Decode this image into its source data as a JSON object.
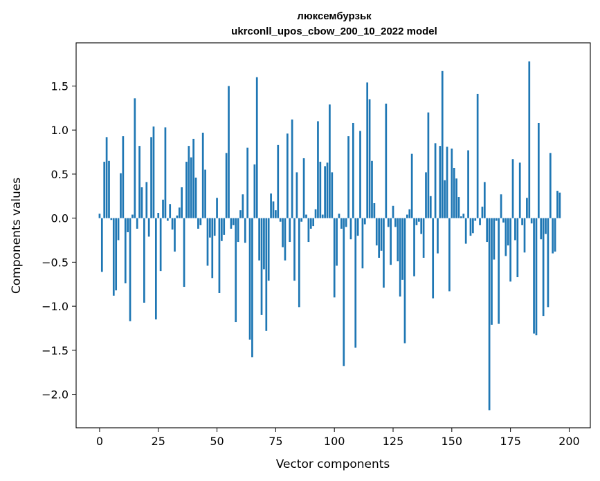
{
  "chart_data": {
    "type": "bar",
    "title": "люксембурзьк",
    "subtitle": "ukrconll_upos_cbow_200_10_2022 model",
    "xlabel": "Vector components",
    "ylabel": "Components values",
    "xlim": [
      -10,
      209
    ],
    "ylim": [
      -2.38,
      1.99
    ],
    "xticks": [
      0,
      25,
      50,
      75,
      100,
      125,
      150,
      175,
      200
    ],
    "yticks": [
      -2.0,
      -1.5,
      -1.0,
      -0.5,
      0.0,
      0.5,
      1.0,
      1.5
    ],
    "ytick_labels": [
      "−2.0",
      "−1.5",
      "−1.0",
      "−0.5",
      "0.0",
      "0.5",
      "1.0",
      "1.5"
    ],
    "bar_color": "#1f77b4",
    "grid": false,
    "values": [
      0.05,
      -0.61,
      0.64,
      0.92,
      0.65,
      -0.02,
      -0.88,
      -0.82,
      -0.25,
      0.51,
      0.93,
      -0.74,
      -0.16,
      -1.17,
      0.04,
      1.36,
      -0.12,
      0.82,
      0.35,
      -0.96,
      0.41,
      -0.21,
      0.92,
      1.04,
      -1.15,
      0.06,
      -0.6,
      0.21,
      1.03,
      -0.03,
      0.16,
      -0.13,
      -0.38,
      0.03,
      0.12,
      0.35,
      -0.78,
      0.64,
      0.82,
      0.69,
      0.9,
      0.46,
      -0.12,
      -0.08,
      0.97,
      0.55,
      -0.54,
      -0.22,
      -0.68,
      -0.2,
      0.23,
      -0.85,
      -0.26,
      -0.19,
      0.74,
      1.5,
      -0.12,
      -0.08,
      -1.18,
      -0.27,
      0.09,
      0.27,
      -0.28,
      0.8,
      -1.38,
      -1.58,
      0.61,
      1.6,
      -0.48,
      -1.1,
      -0.58,
      -1.28,
      -0.71,
      0.28,
      0.19,
      0.09,
      0.83,
      -0.04,
      -0.33,
      -0.48,
      0.96,
      -0.27,
      1.12,
      -0.71,
      0.52,
      -1.01,
      -0.04,
      0.68,
      0.04,
      -0.27,
      -0.12,
      -0.09,
      0.1,
      1.1,
      0.64,
      0.04,
      0.59,
      0.63,
      1.29,
      0.52,
      -0.9,
      -0.54,
      0.05,
      -0.12,
      -1.68,
      -0.1,
      0.93,
      -0.24,
      1.08,
      -1.47,
      -0.2,
      0.99,
      -0.57,
      -0.07,
      1.54,
      1.35,
      0.65,
      0.17,
      -0.31,
      -0.45,
      -0.37,
      -0.79,
      1.3,
      -0.1,
      -0.53,
      0.14,
      -0.1,
      -0.49,
      -0.89,
      -0.7,
      -1.42,
      0.04,
      0.1,
      0.73,
      -0.66,
      -0.08,
      -0.04,
      -0.18,
      -0.45,
      0.52,
      1.2,
      0.25,
      -0.91,
      0.85,
      -0.4,
      0.82,
      1.67,
      0.43,
      0.81,
      -0.83,
      0.79,
      0.57,
      0.45,
      0.24,
      0.02,
      0.05,
      -0.29,
      0.77,
      -0.2,
      -0.17,
      -0.03,
      1.41,
      -0.08,
      0.13,
      0.41,
      -0.27,
      -2.18,
      -1.21,
      -0.47,
      -0.03,
      -1.2,
      0.27,
      -0.05,
      -0.43,
      -0.31,
      -0.72,
      0.67,
      -0.25,
      -0.67,
      0.63,
      -0.08,
      -0.39,
      0.23,
      1.78,
      -0.06,
      -1.31,
      -1.33,
      1.08,
      -0.24,
      -1.11,
      -0.18,
      -1.01,
      0.74,
      -0.4,
      -0.38,
      0.31,
      0.29
    ]
  }
}
